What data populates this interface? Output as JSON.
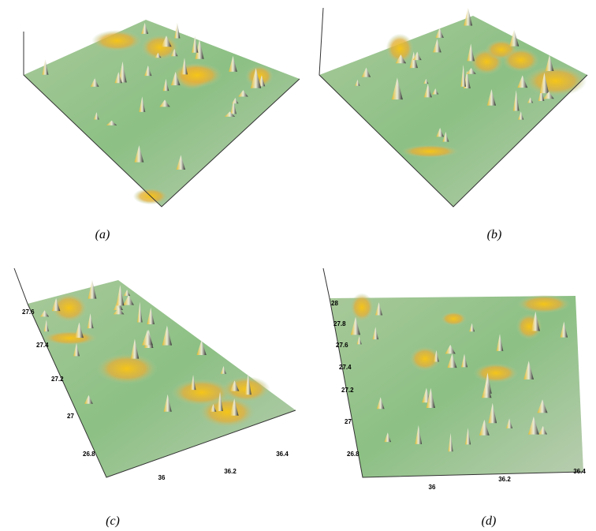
{
  "panels": [
    {
      "caption": "(a)",
      "y_ticks": [],
      "x_ticks": []
    },
    {
      "caption": "(b)",
      "y_ticks": [],
      "x_ticks": []
    },
    {
      "caption": "(c)",
      "y_ticks": [
        "27.6",
        "27.4",
        "27.2",
        "27",
        "26.8"
      ],
      "x_ticks": [
        "36",
        "36.2",
        "36.4"
      ]
    },
    {
      "caption": "(d)",
      "y_ticks": [
        "28",
        "27.8",
        "27.6",
        "27.4",
        "27.2",
        "27",
        "26.8"
      ],
      "x_ticks": [
        "36",
        "36.2",
        "36.4"
      ]
    }
  ]
}
